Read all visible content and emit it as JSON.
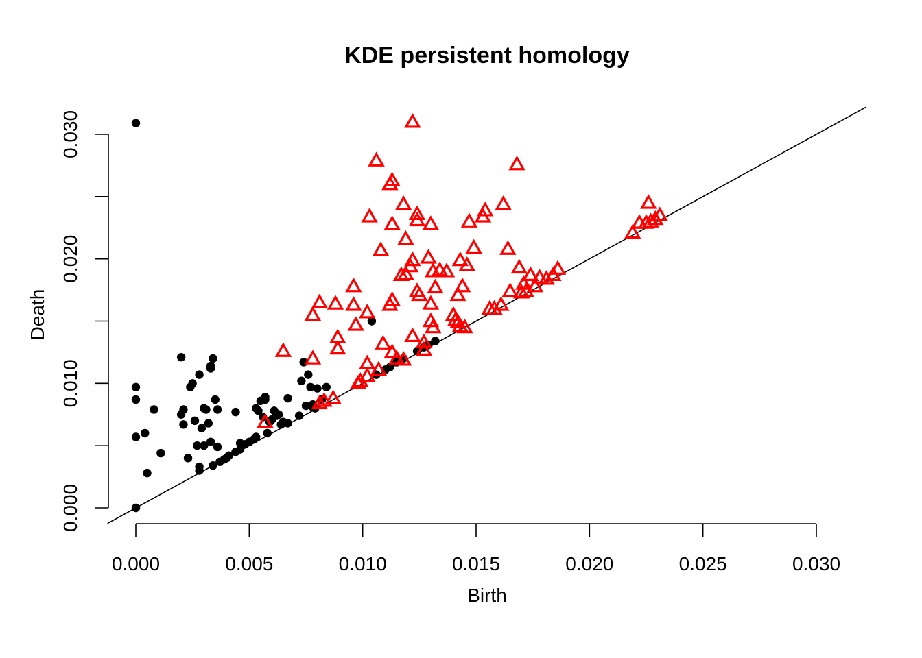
{
  "chart_data": {
    "type": "scatter",
    "title": "KDE persistent homology",
    "xlabel": "Birth",
    "ylabel": "Death",
    "xlim": [
      0,
      0.03
    ],
    "ylim": [
      0,
      0.03
    ],
    "x_ticks": [
      "0.000",
      "0.005",
      "0.010",
      "0.015",
      "0.020",
      "0.025",
      "0.030"
    ],
    "y_ticks": [
      "0.000",
      "0.010",
      "0.020",
      "0.030"
    ],
    "diagonal": true,
    "grid": false,
    "series": [
      {
        "marker": "filled-circle",
        "color": "#000000",
        "points": [
          [
            0.0,
            0.0309
          ],
          [
            0.0,
            0.0097
          ],
          [
            0.0,
            0.0087
          ],
          [
            0.0,
            0.0057
          ],
          [
            0.0,
            0.0
          ],
          [
            0.0004,
            0.006
          ],
          [
            0.0005,
            0.0028
          ],
          [
            0.0008,
            0.0079
          ],
          [
            0.0011,
            0.0044
          ],
          [
            0.002,
            0.0121
          ],
          [
            0.002,
            0.0075
          ],
          [
            0.0021,
            0.0067
          ],
          [
            0.0021,
            0.0079
          ],
          [
            0.0023,
            0.004
          ],
          [
            0.0024,
            0.0097
          ],
          [
            0.0025,
            0.01
          ],
          [
            0.0026,
            0.007
          ],
          [
            0.0027,
            0.005
          ],
          [
            0.0028,
            0.0107
          ],
          [
            0.0028,
            0.0033
          ],
          [
            0.0028,
            0.003
          ],
          [
            0.0029,
            0.0064
          ],
          [
            0.003,
            0.008
          ],
          [
            0.003,
            0.005
          ],
          [
            0.0031,
            0.0079
          ],
          [
            0.0032,
            0.0068
          ],
          [
            0.0033,
            0.0114
          ],
          [
            0.0033,
            0.0112
          ],
          [
            0.0033,
            0.0053
          ],
          [
            0.0034,
            0.012
          ],
          [
            0.0034,
            0.0034
          ],
          [
            0.0035,
            0.0087
          ],
          [
            0.0036,
            0.0049
          ],
          [
            0.0036,
            0.0079
          ],
          [
            0.0037,
            0.0037
          ],
          [
            0.0039,
            0.0039
          ],
          [
            0.004,
            0.004
          ],
          [
            0.0041,
            0.0042
          ],
          [
            0.0044,
            0.0077
          ],
          [
            0.0044,
            0.0045
          ],
          [
            0.0046,
            0.0047
          ],
          [
            0.0046,
            0.0052
          ],
          [
            0.0048,
            0.0051
          ],
          [
            0.005,
            0.0053
          ],
          [
            0.0052,
            0.0055
          ],
          [
            0.0053,
            0.008
          ],
          [
            0.0053,
            0.0057
          ],
          [
            0.0054,
            0.0078
          ],
          [
            0.0055,
            0.0086
          ],
          [
            0.0056,
            0.0073
          ],
          [
            0.0057,
            0.0089
          ],
          [
            0.0057,
            0.0087
          ],
          [
            0.0058,
            0.006
          ],
          [
            0.0059,
            0.0069
          ],
          [
            0.006,
            0.0071
          ],
          [
            0.0061,
            0.0078
          ],
          [
            0.0062,
            0.0074
          ],
          [
            0.0063,
            0.0075
          ],
          [
            0.0064,
            0.0067
          ],
          [
            0.0065,
            0.0069
          ],
          [
            0.0067,
            0.0068
          ],
          [
            0.0067,
            0.0088
          ],
          [
            0.0072,
            0.0074
          ],
          [
            0.0073,
            0.0102
          ],
          [
            0.0074,
            0.0117
          ],
          [
            0.0075,
            0.0082
          ],
          [
            0.0076,
            0.0107
          ],
          [
            0.0077,
            0.0097
          ],
          [
            0.0078,
            0.0083
          ],
          [
            0.0078,
            0.0081
          ],
          [
            0.0079,
            0.008
          ],
          [
            0.008,
            0.0096
          ],
          [
            0.0082,
            0.0087
          ],
          [
            0.0084,
            0.0097
          ],
          [
            0.0104,
            0.015
          ],
          [
            0.0106,
            0.0107
          ],
          [
            0.011,
            0.0111
          ],
          [
            0.0112,
            0.0113
          ],
          [
            0.0115,
            0.0117
          ],
          [
            0.0118,
            0.012
          ],
          [
            0.0124,
            0.0126
          ],
          [
            0.0127,
            0.0129
          ],
          [
            0.0129,
            0.0131
          ],
          [
            0.0132,
            0.0134
          ]
        ]
      },
      {
        "marker": "open-triangle",
        "color": "#ff0000",
        "points": [
          [
            0.0122,
            0.031
          ],
          [
            0.0106,
            0.0279
          ],
          [
            0.0168,
            0.0276
          ],
          [
            0.0113,
            0.0263
          ],
          [
            0.0112,
            0.026
          ],
          [
            0.0118,
            0.0244
          ],
          [
            0.0162,
            0.0244
          ],
          [
            0.0154,
            0.0239
          ],
          [
            0.0124,
            0.0236
          ],
          [
            0.0103,
            0.0234
          ],
          [
            0.0124,
            0.0231
          ],
          [
            0.0153,
            0.0234
          ],
          [
            0.0113,
            0.0228
          ],
          [
            0.013,
            0.0228
          ],
          [
            0.0147,
            0.023
          ],
          [
            0.0226,
            0.0245
          ],
          [
            0.0222,
            0.0229
          ],
          [
            0.0225,
            0.0229
          ],
          [
            0.0227,
            0.023
          ],
          [
            0.0229,
            0.0232
          ],
          [
            0.0231,
            0.0235
          ],
          [
            0.0219,
            0.0221
          ],
          [
            0.0119,
            0.0216
          ],
          [
            0.0108,
            0.0207
          ],
          [
            0.0149,
            0.0209
          ],
          [
            0.0164,
            0.0208
          ],
          [
            0.0122,
            0.0199
          ],
          [
            0.0129,
            0.0201
          ],
          [
            0.0143,
            0.0199
          ],
          [
            0.0121,
            0.0194
          ],
          [
            0.0131,
            0.019
          ],
          [
            0.0134,
            0.0191
          ],
          [
            0.0137,
            0.019
          ],
          [
            0.0146,
            0.0195
          ],
          [
            0.0169,
            0.0193
          ],
          [
            0.0117,
            0.0187
          ],
          [
            0.0119,
            0.0188
          ],
          [
            0.0174,
            0.0187
          ],
          [
            0.0178,
            0.0185
          ],
          [
            0.0181,
            0.0184
          ],
          [
            0.0184,
            0.0187
          ],
          [
            0.0186,
            0.0192
          ],
          [
            0.0171,
            0.018
          ],
          [
            0.0176,
            0.0178
          ],
          [
            0.0096,
            0.0178
          ],
          [
            0.0132,
            0.0177
          ],
          [
            0.0144,
            0.0178
          ],
          [
            0.0124,
            0.0174
          ],
          [
            0.0125,
            0.0171
          ],
          [
            0.0142,
            0.0171
          ],
          [
            0.0165,
            0.0174
          ],
          [
            0.017,
            0.0173
          ],
          [
            0.0172,
            0.0174
          ],
          [
            0.0081,
            0.0165
          ],
          [
            0.0088,
            0.0164
          ],
          [
            0.0096,
            0.0163
          ],
          [
            0.0113,
            0.0167
          ],
          [
            0.0112,
            0.0163
          ],
          [
            0.013,
            0.0164
          ],
          [
            0.0161,
            0.0163
          ],
          [
            0.0156,
            0.016
          ],
          [
            0.0158,
            0.016
          ],
          [
            0.0102,
            0.0157
          ],
          [
            0.0078,
            0.0155
          ],
          [
            0.014,
            0.0155
          ],
          [
            0.0141,
            0.0151
          ],
          [
            0.0142,
            0.0149
          ],
          [
            0.013,
            0.015
          ],
          [
            0.0097,
            0.0147
          ],
          [
            0.0131,
            0.0145
          ],
          [
            0.0143,
            0.0146
          ],
          [
            0.0145,
            0.0145
          ],
          [
            0.0089,
            0.0137
          ],
          [
            0.0122,
            0.0138
          ],
          [
            0.0109,
            0.0132
          ],
          [
            0.0127,
            0.0133
          ],
          [
            0.0089,
            0.0128
          ],
          [
            0.0065,
            0.0126
          ],
          [
            0.0113,
            0.0125
          ],
          [
            0.0127,
            0.0127
          ],
          [
            0.0078,
            0.012
          ],
          [
            0.0115,
            0.012
          ],
          [
            0.0118,
            0.0119
          ],
          [
            0.0102,
            0.0116
          ],
          [
            0.0107,
            0.0111
          ],
          [
            0.0102,
            0.0106
          ],
          [
            0.0099,
            0.0102
          ],
          [
            0.0098,
            0.01
          ],
          [
            0.0087,
            0.0088
          ],
          [
            0.0083,
            0.0086
          ],
          [
            0.0081,
            0.0084
          ],
          [
            0.0057,
            0.0069
          ]
        ]
      }
    ]
  }
}
